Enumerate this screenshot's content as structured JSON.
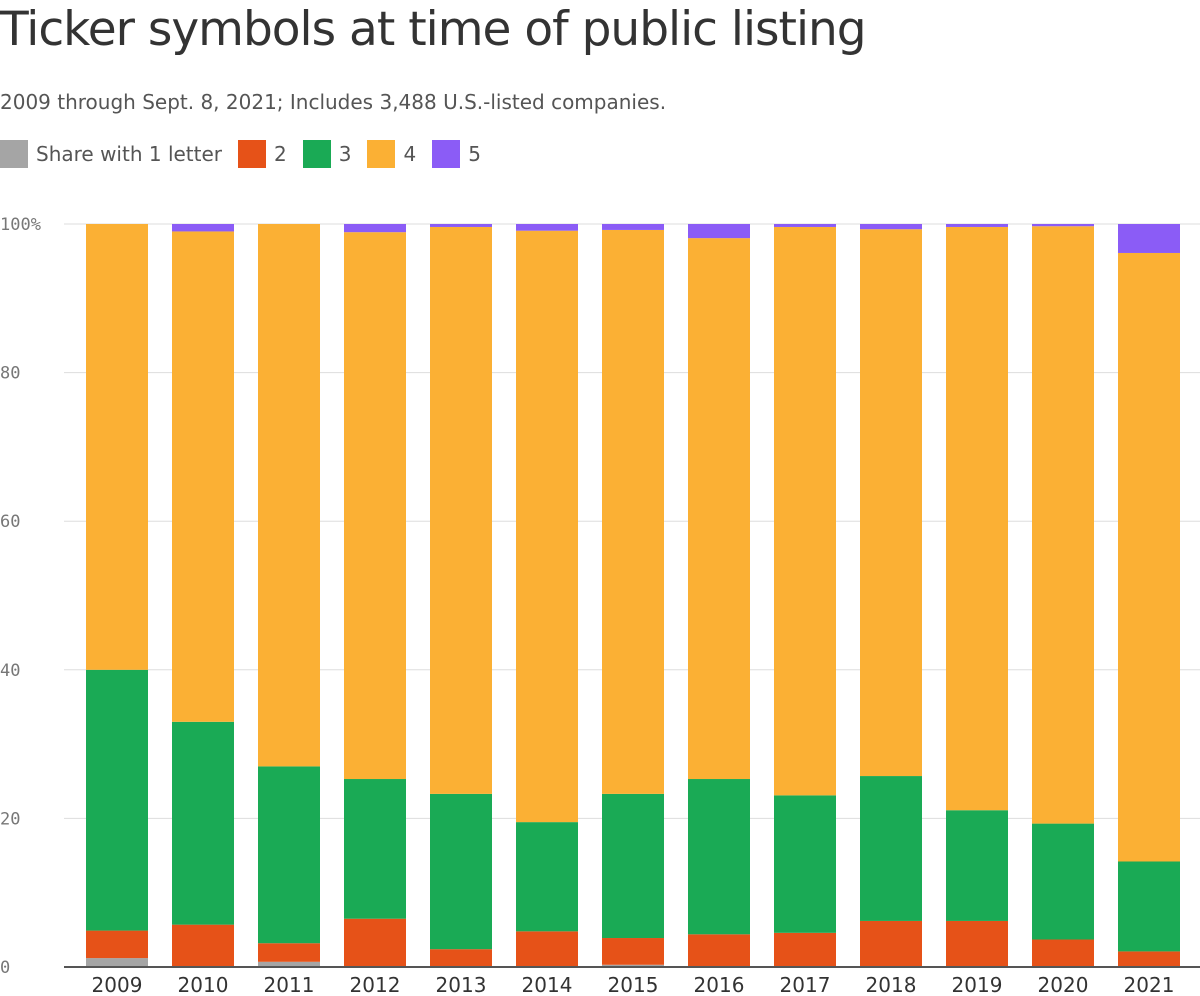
{
  "title": "Ticker symbols at time of public listing",
  "subtitle": "2009 through Sept. 8, 2021; Includes 3,488 U.S.-listed companies.",
  "colors": {
    "s1": "#a5a5a5",
    "s2": "#e65218",
    "s3": "#1aaa55",
    "s4": "#fbb034",
    "s5": "#8b5cf6",
    "grid": "#dddddd",
    "axis": "#555555"
  },
  "chart_data": {
    "type": "bar",
    "stacked": true,
    "title": "Ticker symbols at time of public listing",
    "subtitle": "2009 through Sept. 8, 2021; Includes 3,488 U.S.-listed companies.",
    "legend_position": "top-left",
    "grid": true,
    "ylim": [
      0,
      100
    ],
    "yticks": [
      {
        "value": 0,
        "label": "0"
      },
      {
        "value": 20,
        "label": "20"
      },
      {
        "value": 40,
        "label": "40"
      },
      {
        "value": 60,
        "label": "60"
      },
      {
        "value": 80,
        "label": "80"
      },
      {
        "value": 100,
        "label": "100%"
      }
    ],
    "categories": [
      "2009",
      "2010",
      "2011",
      "2012",
      "2013",
      "2014",
      "2015",
      "2016",
      "2017",
      "2018",
      "2019",
      "2020",
      "2021"
    ],
    "series": [
      {
        "name": "Share with 1 letter",
        "key": "s1",
        "values": [
          1.2,
          0,
          0.7,
          0,
          0,
          0,
          0.3,
          0,
          0,
          0,
          0,
          0,
          0
        ]
      },
      {
        "name": "2",
        "key": "s2",
        "values": [
          3.7,
          5.7,
          2.5,
          6.5,
          2.4,
          4.8,
          3.6,
          4.4,
          4.6,
          6.2,
          6.2,
          3.7,
          2.1
        ]
      },
      {
        "name": "3",
        "key": "s3",
        "values": [
          35.1,
          27.3,
          23.8,
          18.8,
          20.9,
          14.7,
          19.4,
          20.9,
          18.5,
          19.5,
          14.9,
          15.6,
          12.1
        ]
      },
      {
        "name": "4",
        "key": "s4",
        "values": [
          60.0,
          66.0,
          73.0,
          73.6,
          76.3,
          79.6,
          75.9,
          72.8,
          76.5,
          73.6,
          78.5,
          80.4,
          81.9
        ]
      },
      {
        "name": "5",
        "key": "s5",
        "values": [
          0,
          1.0,
          0,
          1.1,
          0.4,
          0.9,
          0.8,
          1.9,
          0.4,
          0.7,
          0.4,
          0.3,
          3.9
        ]
      }
    ]
  }
}
